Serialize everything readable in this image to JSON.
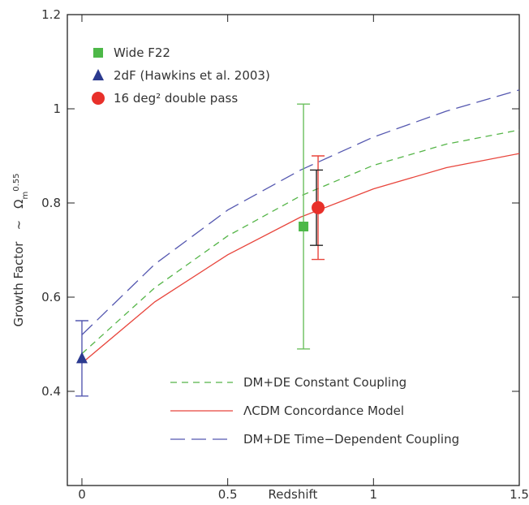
{
  "chart_data": {
    "type": "line",
    "x_label": "Redshift",
    "y_label": {
      "text": "Growth Factor",
      "symbol": "~",
      "omega": "Ω",
      "subscript": "m",
      "superscript": "0.55"
    },
    "xlim": [
      -0.05,
      1.5
    ],
    "ylim": [
      0.2,
      1.2
    ],
    "xticks": [
      0,
      0.5,
      1,
      1.5
    ],
    "yticks": [
      0.4,
      0.6,
      0.8,
      1,
      1.2
    ],
    "x": [
      0,
      0.25,
      0.5,
      0.75,
      1,
      1.25,
      1.5
    ],
    "series": [
      {
        "name": "DM+DE Constant Coupling",
        "color": "#55b548",
        "dash": "8,6",
        "values": [
          0.48,
          0.62,
          0.73,
          0.815,
          0.88,
          0.925,
          0.955
        ]
      },
      {
        "name": "ΛCDM Concordance Model",
        "color": "#e8453c",
        "dash": "none",
        "values": [
          0.46,
          0.59,
          0.69,
          0.77,
          0.83,
          0.875,
          0.905
        ]
      },
      {
        "name": "DM+DE Time−Dependent Coupling",
        "color": "#5558b0",
        "dash": "18,8",
        "values": [
          0.52,
          0.67,
          0.785,
          0.87,
          0.94,
          0.995,
          1.04
        ]
      }
    ],
    "points": [
      {
        "name": "Wide F22",
        "color": "#4db848",
        "marker": "square",
        "x": 0.76,
        "y": 0.75,
        "errors": [
          {
            "color": "#6bbf5e",
            "low": 0.49,
            "high": 1.01
          }
        ]
      },
      {
        "name": "2dF (Hawkins et al. 2003)",
        "color": "#2b3a8f",
        "marker": "triangle",
        "x": 0,
        "y": 0.47,
        "errors": [
          {
            "color": "#5558b0",
            "low": 0.39,
            "high": 0.55
          }
        ]
      },
      {
        "name": "16 deg² double pass",
        "color": "#e8302a",
        "marker": "circle",
        "x": 0.81,
        "y": 0.79,
        "errors": [
          {
            "color": "#e8453c",
            "low": 0.68,
            "high": 0.9
          },
          {
            "color": "#222222",
            "low": 0.71,
            "high": 0.87
          }
        ]
      }
    ]
  }
}
